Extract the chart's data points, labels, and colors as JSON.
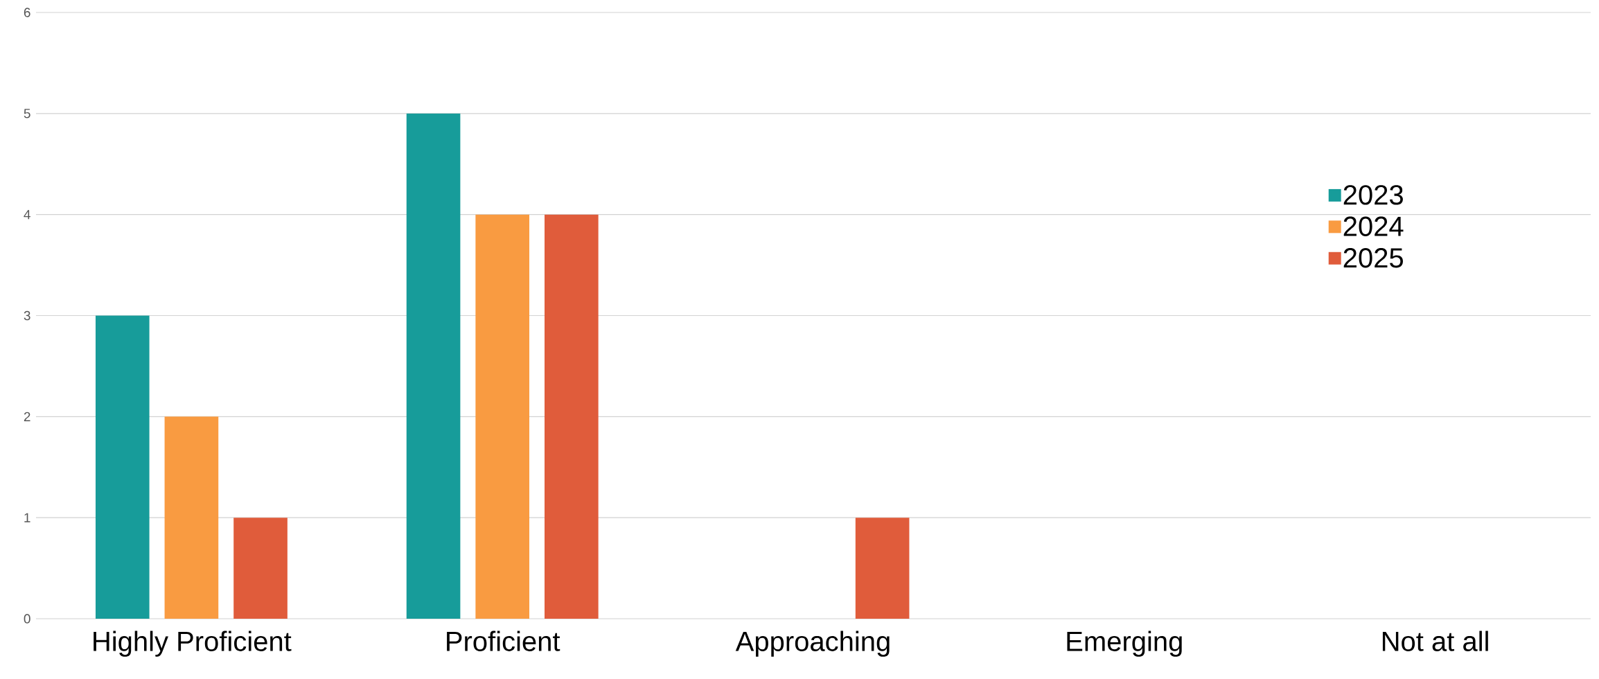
{
  "chart_data": {
    "type": "bar",
    "categories": [
      "Highly Proficient",
      "Proficient",
      "Approaching",
      "Emerging",
      "Not at all"
    ],
    "series": [
      {
        "name": "2023",
        "color": "#179c9a",
        "values": [
          3,
          5,
          0,
          0,
          0
        ]
      },
      {
        "name": "2024",
        "color": "#f99b41",
        "values": [
          2,
          4,
          0,
          0,
          0
        ]
      },
      {
        "name": "2025",
        "color": "#e05c3b",
        "values": [
          1,
          4,
          1,
          0,
          0
        ]
      }
    ],
    "ylim": [
      0,
      6
    ],
    "yticks": [
      0,
      1,
      2,
      3,
      4,
      5,
      6
    ],
    "grid": "y",
    "legend": "right"
  }
}
